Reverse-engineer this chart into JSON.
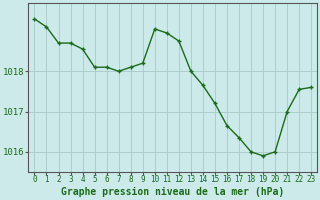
{
  "x": [
    0,
    1,
    2,
    3,
    4,
    5,
    6,
    7,
    8,
    9,
    10,
    11,
    12,
    13,
    14,
    15,
    16,
    17,
    18,
    19,
    20,
    21,
    22,
    23
  ],
  "y": [
    1019.3,
    1019.1,
    1018.7,
    1018.7,
    1018.55,
    1018.1,
    1018.1,
    1018.0,
    1018.1,
    1018.2,
    1019.05,
    1018.95,
    1018.75,
    1018.0,
    1017.65,
    1017.2,
    1016.65,
    1016.35,
    1016.0,
    1015.9,
    1016.0,
    1017.0,
    1017.55,
    1017.6
  ],
  "line_color": "#1a6b1a",
  "marker_color": "#1a6b1a",
  "bg_color": "#cceaea",
  "grid_color": "#aac8c8",
  "axis_label_color": "#1a6b1a",
  "tick_label_color": "#1a6b1a",
  "xlabel": "Graphe pression niveau de la mer (hPa)",
  "ylim": [
    1015.5,
    1019.7
  ],
  "yticks": [
    1016,
    1017,
    1018
  ],
  "xticks": [
    0,
    1,
    2,
    3,
    4,
    5,
    6,
    7,
    8,
    9,
    10,
    11,
    12,
    13,
    14,
    15,
    16,
    17,
    18,
    19,
    20,
    21,
    22,
    23
  ],
  "xtick_labels": [
    "0",
    "1",
    "2",
    "3",
    "4",
    "5",
    "6",
    "7",
    "8",
    "9",
    "10",
    "11",
    "12",
    "13",
    "14",
    "15",
    "16",
    "17",
    "18",
    "19",
    "20",
    "21",
    "22",
    "23"
  ],
  "spine_color": "#555555",
  "xlabel_fontsize": 7,
  "tick_fontsize": 5.5,
  "ytick_fontsize": 6.5
}
